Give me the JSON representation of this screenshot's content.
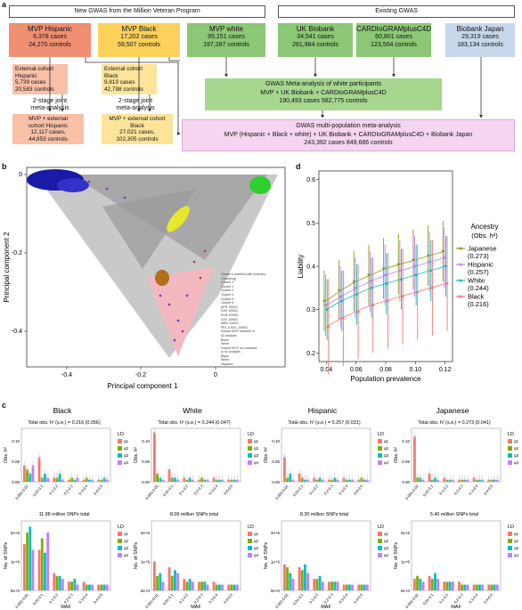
{
  "panel_a": {
    "letter": "a",
    "header_new": "New GWAS from the Million Veteran Program",
    "header_existing": "Existing GWAS",
    "mvp_hispanic": {
      "title": "MVP Hispanic",
      "cases": "6,378 cases",
      "controls": "24,270 controls"
    },
    "mvp_black": {
      "title": "MVP Black",
      "cases": "17,202 cases",
      "controls": "59,507 controls"
    },
    "mvp_white": {
      "title": "MVP white",
      "cases": "95,151 cases",
      "controls": "197,287 controls"
    },
    "uk_biobank": {
      "title": "UK Biobank",
      "cases": "34,541 cases",
      "controls": "261,984 controls"
    },
    "cardiogram": {
      "title": "CARDIoGRAMplusC4D",
      "cases": "60,801 cases",
      "controls": "123,504 controls"
    },
    "biobank_japan": {
      "title": "Biobank Japan",
      "cases": "29,319 cases",
      "controls": "183,134 controls"
    },
    "ext_hispanic": {
      "l1": "External cohort",
      "l2": "Hispanic",
      "cases": "5,739 cases",
      "controls": "20,583 controls"
    },
    "ext_black": {
      "l1": "External cohort",
      "l2": "Black",
      "cases": "9,819 cases",
      "controls": "42,798 controls"
    },
    "two_stage_1": "2-stage joint",
    "two_stage_2": "meta-analysis",
    "joint_hispanic": {
      "l1": "MVP + external",
      "l2": "cohort Hispanic",
      "cases": "12,117 cases,",
      "controls": "44,853 controls"
    },
    "joint_black": {
      "l1": "MVP + external cohort",
      "l2": "Black",
      "cases": "27,021 cases,",
      "controls": "102,305 controls"
    },
    "meta_white": {
      "title": "GWAS Meta-analysis of white participants",
      "line2": "MVP + UK Biobank + CARDIoGRAMplusC4D",
      "line3": "190,493 cases  582,775 controls"
    },
    "multi_pop": {
      "title": "GWAS multi-population meta-analysis",
      "line2": "MVP (Hispanic + Black + white) + UK Biobank + CARDIoGRAMplusC4D + Biobank Japan",
      "line3": "243,392 cases  849,686 controls"
    }
  },
  "panel_b": {
    "letter": "b",
    "xlabel": "Principal component 1",
    "ylabel": "Principal component 2",
    "xticks": [
      "-0.4",
      "-0.2",
      "0"
    ],
    "yticks": [
      "0",
      "-0.2",
      "-0.4"
    ],
    "legend_lines": [
      "Cluster k (defined with Ancestry",
      "Clustering)",
      "Cluster 1",
      "Cluster 2",
      "Cluster 3",
      "Cluster 4",
      "Cluster 5",
      "Cluster 6",
      "AFR 1000G",
      "EAS 1000G",
      "EUR 1000G",
      "SAS 1000G",
      "AMR 1000G",
      "PEL & MXL 1000G",
      "Subset MVP included in",
      "h2 analysis",
      "Black",
      "White",
      "Subset MVP not included",
      "in h2 analysis",
      "Black",
      "White",
      "Hispanic"
    ]
  },
  "panel_d": {
    "letter": "d",
    "xlabel": "Population prevalence",
    "ylabel": "Liability",
    "xticks": [
      "0.04",
      "0.06",
      "0.08",
      "0.10",
      "0.12"
    ],
    "yticks": [
      "0.6",
      "0.5",
      "0.4",
      "0.3",
      "0.2"
    ],
    "legend_title": "Ancestry",
    "legend_subtitle": "(Obs. h²)",
    "legend": [
      {
        "name": "Japanese",
        "h2": "(0.273)",
        "color": "#8a9a1a"
      },
      {
        "name": "Hispanic",
        "h2": "(0.257)",
        "color": "#c77cff"
      },
      {
        "name": "White",
        "h2": "(0.244)",
        "color": "#00bfc4"
      },
      {
        "name": "Black",
        "h2": "(0.216)",
        "color": "#f8766d"
      }
    ]
  },
  "panel_c": {
    "letter": "c",
    "maf_label": "MAF",
    "obs_label": "Obs. h²",
    "snps_label": "No. of SNPs",
    "ld_label": "LD",
    "ld_levels": [
      "q1",
      "q2",
      "q3",
      "q4"
    ],
    "ld_colors": [
      "#f8766d",
      "#7cae00",
      "#00bfc4",
      "#c77cff"
    ],
    "maf_bins": [
      "0.001-0.01",
      "0.01-0.1",
      "0.1-0.2",
      "0.2-0.3",
      "0.3-0.4",
      "0.4-0.5"
    ],
    "h2_yticks": [
      "0.10",
      "0.05",
      "0.00"
    ],
    "snp_yticks": [
      "2e+6",
      "1e+6",
      "0e+0"
    ],
    "groups": [
      {
        "name": "Black",
        "total": "Total obs. h² (s.e.) = 0.216 (0.056)",
        "snps": "11.98 million SNPs total"
      },
      {
        "name": "White",
        "total": "Total obs. h² (s.e.) = 0.244 (0.047)",
        "snps": "8.09 million SNPs total"
      },
      {
        "name": "Hispanic",
        "total": "Total obs. h² (s.e.) = 0.257 (0.031)",
        "snps": "8.30 million SNPs total"
      },
      {
        "name": "Japanese",
        "total": "Total obs. h² (s.e.) = 0.273 (0.041)",
        "snps": "5.40 million SNPs total"
      }
    ]
  },
  "chart_data": [
    {
      "type": "line",
      "title": "",
      "xlabel": "Population prevalence",
      "ylabel": "Liability",
      "x": [
        0.04,
        0.05,
        0.06,
        0.07,
        0.08,
        0.09,
        0.1,
        0.11,
        0.12
      ],
      "ylim": [
        0.18,
        0.62
      ],
      "series": [
        {
          "name": "Japanese",
          "values": [
            0.32,
            0.345,
            0.365,
            0.38,
            0.395,
            0.405,
            0.415,
            0.425,
            0.435
          ]
        },
        {
          "name": "Hispanic",
          "values": [
            0.31,
            0.33,
            0.35,
            0.365,
            0.38,
            0.39,
            0.4,
            0.41,
            0.42
          ]
        },
        {
          "name": "White",
          "values": [
            0.3,
            0.32,
            0.335,
            0.35,
            0.36,
            0.37,
            0.38,
            0.39,
            0.4
          ]
        },
        {
          "name": "Black",
          "values": [
            0.26,
            0.28,
            0.295,
            0.31,
            0.32,
            0.33,
            0.34,
            0.35,
            0.36
          ]
        }
      ]
    }
  ]
}
